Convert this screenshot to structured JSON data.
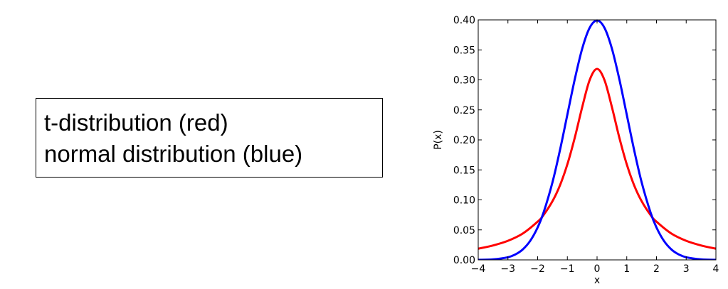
{
  "caption": {
    "lines": [
      "t-distribution (red)",
      "normal distribution (blue)"
    ]
  },
  "chart_data": {
    "type": "line",
    "title": "",
    "xlabel": "x",
    "ylabel": "P(x)",
    "xlim": [
      -4,
      4
    ],
    "ylim": [
      0,
      0.4
    ],
    "x_ticks": [
      -4,
      -3,
      -2,
      -1,
      0,
      1,
      2,
      3,
      4
    ],
    "x_tick_labels": [
      "−4",
      "−3",
      "−2",
      "−1",
      "0",
      "1",
      "2",
      "3",
      "4"
    ],
    "y_ticks": [
      0,
      0.05,
      0.1,
      0.15,
      0.2,
      0.25,
      0.3,
      0.35,
      0.4
    ],
    "y_tick_labels": [
      "0.00",
      "0.05",
      "0.10",
      "0.15",
      "0.20",
      "0.25",
      "0.30",
      "0.35",
      "0.40"
    ],
    "grid": false,
    "series": [
      {
        "color": "#ff0000",
        "x": [
          -4,
          -3.5,
          -3,
          -2.5,
          -2,
          -1.8,
          -1.5,
          -1.25,
          -1,
          -0.75,
          -0.5,
          -0.25,
          0,
          0.25,
          0.5,
          0.75,
          1,
          1.25,
          1.5,
          1.8,
          2,
          2.5,
          3,
          3.5,
          4
        ],
        "values": [
          0.0187,
          0.0241,
          0.0318,
          0.0439,
          0.0637,
          0.0748,
          0.0979,
          0.1241,
          0.1592,
          0.2037,
          0.2546,
          0.2996,
          0.3183,
          0.2996,
          0.2546,
          0.2037,
          0.1592,
          0.1241,
          0.0979,
          0.0748,
          0.0637,
          0.0439,
          0.0318,
          0.0241,
          0.0187
        ]
      },
      {
        "color": "#0000ff",
        "x": [
          -4,
          -3.5,
          -3,
          -2.75,
          -2.5,
          -2.25,
          -2,
          -1.8,
          -1.5,
          -1.25,
          -1,
          -0.75,
          -0.5,
          -0.25,
          0,
          0.25,
          0.5,
          0.75,
          1,
          1.25,
          1.5,
          1.8,
          2,
          2.25,
          2.5,
          2.75,
          3,
          3.5,
          4
        ],
        "values": [
          0.0001,
          0.0009,
          0.0044,
          0.0091,
          0.0175,
          0.0317,
          0.054,
          0.079,
          0.1295,
          0.1826,
          0.242,
          0.3011,
          0.3521,
          0.3867,
          0.3989,
          0.3867,
          0.3521,
          0.3011,
          0.242,
          0.1826,
          0.1295,
          0.079,
          0.054,
          0.0317,
          0.0175,
          0.0091,
          0.0044,
          0.0009,
          0.0001
        ]
      }
    ]
  }
}
